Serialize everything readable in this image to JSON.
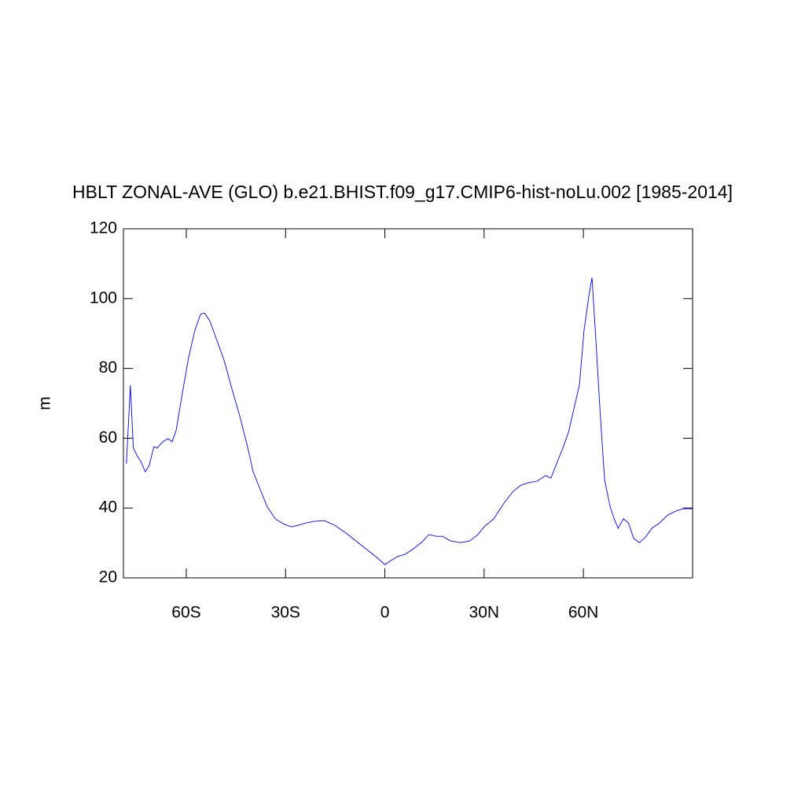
{
  "chart_data": {
    "type": "line",
    "title": "HBLT ZONAL-AVE (GLO) b.e21.BHIST.f09_g17.CMIP6-hist-noLu.002 [1985-2014]",
    "y_label": "m",
    "x": [
      -78.1,
      -76.9,
      -76.0,
      -74.8,
      -73.6,
      -72.4,
      -71.2,
      -69.8,
      -68.8,
      -67.1,
      -65.5,
      -64.3,
      -63.1,
      -61.2,
      -59.3,
      -57.4,
      -55.7,
      -54.5,
      -52.9,
      -51.0,
      -48.6,
      -46.2,
      -43.8,
      -41.4,
      -39.8,
      -37.9,
      -35.5,
      -33.1,
      -30.7,
      -28.3,
      -26.0,
      -23.6,
      -21.2,
      -18.3,
      -15.2,
      -11.7,
      -8.1,
      -4.5,
      -2.1,
      0,
      1.4,
      3.8,
      6.2,
      8.6,
      11.0,
      13.3,
      15.7,
      17.4,
      19.8,
      22.9,
      25.7,
      28.1,
      30.0,
      32.9,
      36.0,
      38.8,
      41.2,
      43.6,
      46.0,
      48.6,
      50.2,
      51.4,
      53.8,
      55.5,
      57.4,
      58.8,
      60.2,
      61.7,
      62.6,
      63.6,
      65.0,
      66.4,
      68.1,
      69.3,
      70.5,
      72.1,
      73.6,
      75.2,
      76.9,
      78.8,
      80.7,
      83.1,
      85.5,
      87.9,
      90.0,
      93.0
    ],
    "series": [
      {
        "name": "HBLT",
        "color": "#0000ff",
        "values": [
          52.7,
          75.2,
          57.2,
          54.9,
          53.1,
          50.4,
          52.2,
          57.6,
          57.2,
          59,
          59.9,
          59,
          62.1,
          72.9,
          83.1,
          90.9,
          95.5,
          95.9,
          93.6,
          88.7,
          82.4,
          74.1,
          66.2,
          57.2,
          50.4,
          45.9,
          40.3,
          36.9,
          35.5,
          34.6,
          35.1,
          35.8,
          36.2,
          36.4,
          35.1,
          32.8,
          30.1,
          27.4,
          25.6,
          23.8,
          24.7,
          26.1,
          26.8,
          28.3,
          30.1,
          32.4,
          31.9,
          31.9,
          30.6,
          30.1,
          30.6,
          32.4,
          34.6,
          36.9,
          41.4,
          44.8,
          46.6,
          47.3,
          47.7,
          49.3,
          48.6,
          51.5,
          57.2,
          61.7,
          69.5,
          75.2,
          90.9,
          101,
          106,
          90.9,
          68.4,
          48.2,
          40.3,
          36.9,
          34.2,
          36.9,
          35.8,
          31.3,
          30.1,
          31.7,
          34.2,
          35.8,
          38,
          39.1,
          39.8,
          39.8
        ]
      }
    ],
    "xlim": [
      -79,
      93
    ],
    "xticks": [
      {
        "value": -60,
        "label": "60S"
      },
      {
        "value": -30,
        "label": "30S"
      },
      0,
      {
        "value": 30,
        "label": "30N"
      },
      {
        "value": 60,
        "label": "60N"
      }
    ],
    "ylim": [
      20,
      120
    ],
    "yticks": [
      20,
      40,
      60,
      80,
      100,
      120
    ]
  }
}
